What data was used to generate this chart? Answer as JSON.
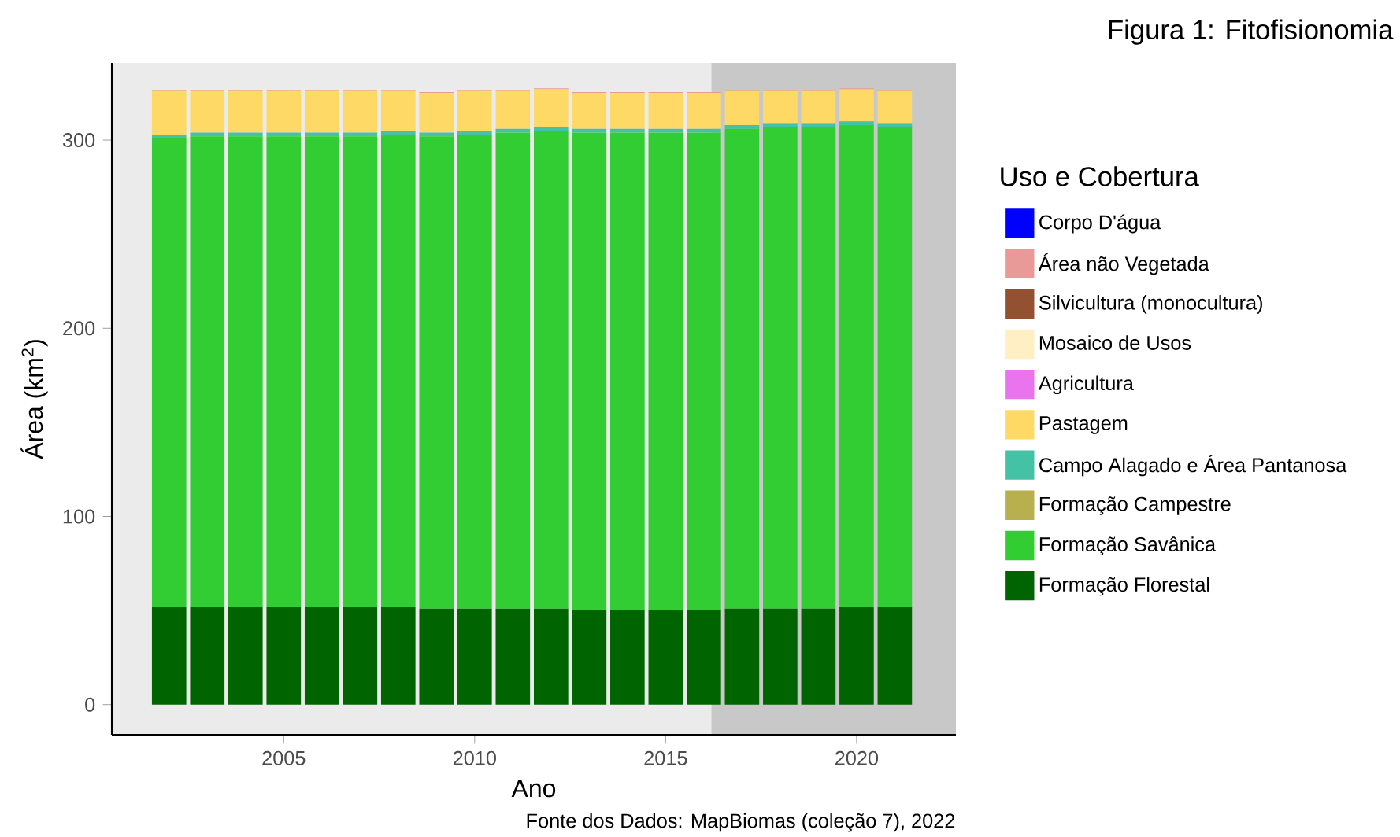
{
  "chart_data": {
    "type": "bar",
    "stacked": true,
    "title": "Figura 1: Fitofisionomia",
    "xlabel": "Ano",
    "ylabel": "Área (km$^{2}$)",
    "legend_title": "Uso e Cobertura",
    "legend": "right",
    "annotations": [
      "Fonte dos Dados: MapBiomas (coleção 7), 2022"
    ],
    "x": [
      2002,
      2003,
      2004,
      2005,
      2006,
      2007,
      2008,
      2009,
      2010,
      2011,
      2012,
      2013,
      2014,
      2015,
      2016,
      2017,
      2018,
      2019,
      2020,
      2021
    ],
    "xlim": [
      2000.5,
      2022.6
    ],
    "xticks": [
      2005,
      2010,
      2015,
      2020
    ],
    "ylim": [
      -16,
      341
    ],
    "yticks": [
      0,
      100,
      200,
      300
    ],
    "bands": [
      {
        "axis": "x",
        "from": 2016.2,
        "to": 2022.6,
        "color": "#c8c8c8"
      }
    ],
    "series": [
      {
        "name": "Formação Florestal",
        "color": "#006400",
        "values": [
          52,
          52,
          52,
          52,
          52,
          52,
          52,
          51,
          51,
          51,
          51,
          50,
          50,
          50,
          50,
          51,
          51,
          51,
          52,
          52
        ]
      },
      {
        "name": "Formação Savânica",
        "color": "#32cd32",
        "values": [
          249,
          250,
          250,
          250,
          250,
          250,
          251,
          251,
          252,
          253,
          254,
          254,
          254,
          254,
          254,
          255,
          256,
          256,
          256,
          255
        ]
      },
      {
        "name": "Formação Campestre",
        "color": "#b8af4f",
        "values": [
          0,
          0,
          0,
          0,
          0,
          0,
          0,
          0,
          0,
          0,
          0,
          0,
          0,
          0,
          0,
          0,
          0,
          0,
          0,
          0
        ]
      },
      {
        "name": "Campo Alagado e Área Pantanosa",
        "color": "#45c2a5",
        "values": [
          2,
          2,
          2,
          2,
          2,
          2,
          2,
          2,
          2,
          2,
          2,
          2,
          2,
          2,
          2,
          2,
          2,
          2,
          2,
          2
        ]
      },
      {
        "name": "Pastagem",
        "color": "#ffd966",
        "values": [
          23,
          22,
          22,
          22,
          22,
          22,
          21,
          21,
          21,
          20,
          20,
          19,
          19,
          19,
          19,
          18,
          17,
          17,
          17,
          17
        ]
      },
      {
        "name": "Agricultura",
        "color": "#e974ed",
        "values": [
          0,
          0,
          0,
          0,
          0,
          0,
          0,
          0,
          0,
          0,
          0,
          0,
          0,
          0,
          0,
          0,
          0,
          0,
          0,
          0
        ]
      },
      {
        "name": "Mosaico de Usos",
        "color": "#ffefc3",
        "values": [
          0,
          0,
          0,
          0,
          0,
          0,
          0,
          0,
          0,
          0,
          0,
          0,
          0,
          0,
          0,
          0,
          0,
          0,
          0,
          0
        ]
      },
      {
        "name": "Silvicultura (monocultura)",
        "color": "#935132",
        "values": [
          0,
          0,
          0,
          0,
          0,
          0,
          0,
          0,
          0,
          0,
          0,
          0,
          0,
          0,
          0,
          0,
          0,
          0,
          0,
          0
        ]
      },
      {
        "name": "Área não Vegetada",
        "color": "#ea9999",
        "values": [
          0.5,
          0.5,
          0.5,
          0.5,
          0.5,
          0.5,
          0.5,
          0.5,
          0.5,
          0.5,
          0.5,
          0.5,
          0.5,
          0.5,
          0.5,
          0.5,
          0.5,
          0.5,
          0.5,
          0.5
        ]
      },
      {
        "name": "Corpo D'água",
        "color": "#0000ff",
        "values": [
          0,
          0,
          0,
          0,
          0,
          0,
          0,
          0,
          0,
          0,
          0,
          0,
          0,
          0,
          0,
          0,
          0,
          0,
          0,
          0
        ]
      }
    ]
  }
}
